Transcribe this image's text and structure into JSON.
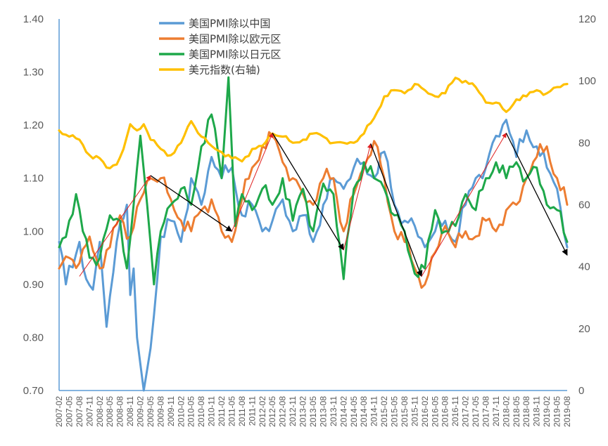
{
  "chart_data": {
    "type": "line",
    "title": "",
    "xlabel": "",
    "ylabel": "",
    "ylim": [
      0.7,
      1.4
    ],
    "y_ticks": [
      "0.70",
      "0.80",
      "0.90",
      "1.00",
      "1.10",
      "1.20",
      "1.30",
      "1.40"
    ],
    "y2lim": [
      0,
      120
    ],
    "y2_ticks": [
      "0",
      "20",
      "40",
      "60",
      "80",
      "100",
      "120"
    ],
    "x_start": "2007-02",
    "x_tick_labels": [
      "2007-02",
      "2007-05",
      "2007-08",
      "2007-11",
      "2008-02",
      "2008-05",
      "2008-08",
      "2008-11",
      "2009-02",
      "2009-05",
      "2009-08",
      "2009-11",
      "2010-02",
      "2010-05",
      "2010-08",
      "2010-11",
      "2011-02",
      "2011-05",
      "2011-08",
      "2011-11",
      "2012-02",
      "2012-05",
      "2012-08",
      "2012-11",
      "2013-02",
      "2013-05",
      "2013-08",
      "2013-11",
      "2014-02",
      "2014-05",
      "2014-08",
      "2014-11",
      "2015-02",
      "2015-05",
      "2015-08",
      "2015-11",
      "2016-02",
      "2016-05",
      "2016-08",
      "2016-11",
      "2017-02",
      "2017-05",
      "2017-08",
      "2017-11",
      "2018-02",
      "2018-05",
      "2018-08",
      "2018-11",
      "2019-02",
      "2019-05",
      "2019-08"
    ],
    "legend_placement": "top-center",
    "grid": false,
    "series": [
      {
        "name": "美国PMI除以中国",
        "color": "#5B9BD5",
        "axis": "left",
        "keypoints": [
          [
            "2007-02",
            0.98
          ],
          [
            "2007-04",
            0.9
          ],
          [
            "2007-08",
            0.98
          ],
          [
            "2007-10",
            0.91
          ],
          [
            "2007-12",
            0.89
          ],
          [
            "2008-02",
            0.98
          ],
          [
            "2008-04",
            0.82
          ],
          [
            "2008-07",
            0.98
          ],
          [
            "2008-10",
            1.05
          ],
          [
            "2008-11",
            0.88
          ],
          [
            "2008-12",
            0.93
          ],
          [
            "2009-01",
            0.8
          ],
          [
            "2009-03",
            0.7
          ],
          [
            "2009-05",
            0.78
          ],
          [
            "2009-08",
            0.99
          ],
          [
            "2009-11",
            1.02
          ],
          [
            "2010-02",
            0.98
          ],
          [
            "2010-05",
            1.1
          ],
          [
            "2010-08",
            1.05
          ],
          [
            "2010-11",
            1.14
          ],
          [
            "2011-02",
            1.1
          ],
          [
            "2011-05",
            1.12
          ],
          [
            "2011-08",
            1.03
          ],
          [
            "2011-11",
            1.05
          ],
          [
            "2012-02",
            1.0
          ],
          [
            "2012-05",
            1.02
          ],
          [
            "2012-08",
            1.06
          ],
          [
            "2012-11",
            1.0
          ],
          [
            "2013-02",
            1.03
          ],
          [
            "2013-05",
            0.98
          ],
          [
            "2013-08",
            1.05
          ],
          [
            "2013-11",
            1.1
          ],
          [
            "2014-02",
            1.08
          ],
          [
            "2014-05",
            1.12
          ],
          [
            "2014-08",
            1.13
          ],
          [
            "2014-11",
            1.1
          ],
          [
            "2015-02",
            1.15
          ],
          [
            "2015-05",
            1.05
          ],
          [
            "2015-08",
            1.02
          ],
          [
            "2015-11",
            1.01
          ],
          [
            "2016-02",
            0.97
          ],
          [
            "2016-05",
            1.0
          ],
          [
            "2016-08",
            1.02
          ],
          [
            "2016-11",
            0.98
          ],
          [
            "2017-02",
            1.05
          ],
          [
            "2017-05",
            1.1
          ],
          [
            "2017-08",
            1.12
          ],
          [
            "2017-11",
            1.18
          ],
          [
            "2018-02",
            1.21
          ],
          [
            "2018-05",
            1.14
          ],
          [
            "2018-08",
            1.19
          ],
          [
            "2018-11",
            1.16
          ],
          [
            "2019-02",
            1.12
          ],
          [
            "2019-05",
            1.08
          ],
          [
            "2019-08",
            0.97
          ]
        ]
      },
      {
        "name": "美国PMI除以欧元区",
        "color": "#ED7D31",
        "axis": "left",
        "keypoints": [
          [
            "2007-02",
            0.93
          ],
          [
            "2007-05",
            0.95
          ],
          [
            "2007-08",
            0.94
          ],
          [
            "2007-11",
            0.99
          ],
          [
            "2008-02",
            0.93
          ],
          [
            "2008-05",
            0.97
          ],
          [
            "2008-08",
            1.03
          ],
          [
            "2008-11",
            0.99
          ],
          [
            "2009-02",
            1.06
          ],
          [
            "2009-05",
            1.1
          ],
          [
            "2009-08",
            1.1
          ],
          [
            "2009-11",
            1.06
          ],
          [
            "2010-02",
            1.02
          ],
          [
            "2010-05",
            1.0
          ],
          [
            "2010-08",
            1.04
          ],
          [
            "2010-11",
            1.06
          ],
          [
            "2011-02",
            1.0
          ],
          [
            "2011-05",
            0.98
          ],
          [
            "2011-08",
            1.06
          ],
          [
            "2011-11",
            1.12
          ],
          [
            "2012-02",
            1.16
          ],
          [
            "2012-05",
            1.18
          ],
          [
            "2012-08",
            1.13
          ],
          [
            "2012-11",
            1.1
          ],
          [
            "2013-02",
            1.07
          ],
          [
            "2013-05",
            1.05
          ],
          [
            "2013-08",
            1.1
          ],
          [
            "2013-11",
            1.1
          ],
          [
            "2014-02",
            1.0
          ],
          [
            "2014-05",
            1.07
          ],
          [
            "2014-08",
            1.12
          ],
          [
            "2014-11",
            1.17
          ],
          [
            "2015-02",
            1.1
          ],
          [
            "2015-05",
            1.0
          ],
          [
            "2015-08",
            0.98
          ],
          [
            "2015-11",
            0.93
          ],
          [
            "2016-02",
            0.9
          ],
          [
            "2016-05",
            0.96
          ],
          [
            "2016-08",
            1.01
          ],
          [
            "2016-11",
            0.97
          ],
          [
            "2017-02",
            1.0
          ],
          [
            "2017-05",
            0.99
          ],
          [
            "2017-08",
            1.02
          ],
          [
            "2017-11",
            1.0
          ],
          [
            "2018-02",
            1.04
          ],
          [
            "2018-05",
            1.05
          ],
          [
            "2018-08",
            1.1
          ],
          [
            "2018-11",
            1.14
          ],
          [
            "2019-02",
            1.16
          ],
          [
            "2019-05",
            1.1
          ],
          [
            "2019-08",
            1.05
          ]
        ]
      },
      {
        "name": "美国PMI除以日元区",
        "color": "#1EA84A",
        "axis": "left",
        "keypoints": [
          [
            "2007-02",
            0.97
          ],
          [
            "2007-05",
            1.02
          ],
          [
            "2007-07",
            1.07
          ],
          [
            "2007-09",
            1.0
          ],
          [
            "2007-11",
            0.95
          ],
          [
            "2008-02",
            0.95
          ],
          [
            "2008-05",
            1.03
          ],
          [
            "2008-08",
            1.02
          ],
          [
            "2008-10",
            0.93
          ],
          [
            "2008-12",
            1.05
          ],
          [
            "2009-02",
            1.18
          ],
          [
            "2009-04",
            1.05
          ],
          [
            "2009-06",
            0.9
          ],
          [
            "2009-08",
            1.0
          ],
          [
            "2009-11",
            1.05
          ],
          [
            "2010-02",
            1.08
          ],
          [
            "2010-05",
            1.05
          ],
          [
            "2010-08",
            1.16
          ],
          [
            "2010-11",
            1.22
          ],
          [
            "2011-02",
            1.1
          ],
          [
            "2011-04",
            1.29
          ],
          [
            "2011-06",
            1.01
          ],
          [
            "2011-08",
            1.07
          ],
          [
            "2011-11",
            1.04
          ],
          [
            "2012-02",
            1.08
          ],
          [
            "2012-05",
            1.05
          ],
          [
            "2012-08",
            1.1
          ],
          [
            "2012-11",
            1.02
          ],
          [
            "2013-02",
            1.08
          ],
          [
            "2013-05",
            1.0
          ],
          [
            "2013-08",
            1.09
          ],
          [
            "2013-11",
            1.07
          ],
          [
            "2014-02",
            0.91
          ],
          [
            "2014-05",
            1.08
          ],
          [
            "2014-08",
            1.13
          ],
          [
            "2014-11",
            1.1
          ],
          [
            "2015-02",
            1.08
          ],
          [
            "2015-05",
            1.03
          ],
          [
            "2015-08",
            1.0
          ],
          [
            "2015-11",
            0.92
          ],
          [
            "2016-02",
            0.93
          ],
          [
            "2016-05",
            1.04
          ],
          [
            "2016-08",
            1.0
          ],
          [
            "2016-11",
            1.01
          ],
          [
            "2017-02",
            1.07
          ],
          [
            "2017-05",
            1.04
          ],
          [
            "2017-08",
            1.1
          ],
          [
            "2017-11",
            1.13
          ],
          [
            "2018-02",
            1.1
          ],
          [
            "2018-05",
            1.13
          ],
          [
            "2018-08",
            1.1
          ],
          [
            "2018-11",
            1.12
          ],
          [
            "2019-02",
            1.05
          ],
          [
            "2019-05",
            1.04
          ],
          [
            "2019-08",
            0.98
          ]
        ]
      },
      {
        "name": "美元指数(右轴)",
        "color": "#FFC000",
        "axis": "right",
        "keypoints": [
          [
            "2007-02",
            84
          ],
          [
            "2007-05",
            82
          ],
          [
            "2007-08",
            81
          ],
          [
            "2007-11",
            76
          ],
          [
            "2008-02",
            75
          ],
          [
            "2008-04",
            72
          ],
          [
            "2008-07",
            73
          ],
          [
            "2008-09",
            78
          ],
          [
            "2008-11",
            86
          ],
          [
            "2009-01",
            84
          ],
          [
            "2009-03",
            86
          ],
          [
            "2009-05",
            81
          ],
          [
            "2009-08",
            78
          ],
          [
            "2009-11",
            76
          ],
          [
            "2010-02",
            80
          ],
          [
            "2010-05",
            87
          ],
          [
            "2010-08",
            82
          ],
          [
            "2010-11",
            79
          ],
          [
            "2011-02",
            77
          ],
          [
            "2011-05",
            75
          ],
          [
            "2011-08",
            74
          ],
          [
            "2011-11",
            78
          ],
          [
            "2012-02",
            79
          ],
          [
            "2012-05",
            83
          ],
          [
            "2012-08",
            82
          ],
          [
            "2012-11",
            80
          ],
          [
            "2013-02",
            81
          ],
          [
            "2013-05",
            83
          ],
          [
            "2013-08",
            82
          ],
          [
            "2013-11",
            80
          ],
          [
            "2014-02",
            80
          ],
          [
            "2014-05",
            80
          ],
          [
            "2014-08",
            83
          ],
          [
            "2014-11",
            88
          ],
          [
            "2015-02",
            95
          ],
          [
            "2015-05",
            97
          ],
          [
            "2015-08",
            96
          ],
          [
            "2015-11",
            99
          ],
          [
            "2016-02",
            97
          ],
          [
            "2016-05",
            95
          ],
          [
            "2016-08",
            96
          ],
          [
            "2016-11",
            101
          ],
          [
            "2017-02",
            100
          ],
          [
            "2017-05",
            98
          ],
          [
            "2017-08",
            93
          ],
          [
            "2017-11",
            93
          ],
          [
            "2018-02",
            90
          ],
          [
            "2018-05",
            94
          ],
          [
            "2018-08",
            95
          ],
          [
            "2018-11",
            97
          ],
          [
            "2019-02",
            96
          ],
          [
            "2019-05",
            98
          ],
          [
            "2019-08",
            99
          ]
        ]
      }
    ],
    "arrows": [
      {
        "color": "#E02020",
        "from": [
          "2007-08",
          0.915
        ],
        "to": [
          "2009-05",
          1.105
        ]
      },
      {
        "color": "#000000",
        "from": [
          "2009-05",
          1.105
        ],
        "to": [
          "2011-05",
          1.0
        ]
      },
      {
        "color": "#E02020",
        "from": [
          "2011-05",
          1.0
        ],
        "to": [
          "2012-05",
          1.185
        ]
      },
      {
        "color": "#000000",
        "from": [
          "2012-05",
          1.185
        ],
        "to": [
          "2014-02",
          0.965
        ]
      },
      {
        "color": "#E02020",
        "from": [
          "2014-02",
          0.965
        ],
        "to": [
          "2014-10",
          1.165
        ]
      },
      {
        "color": "#000000",
        "from": [
          "2014-10",
          1.165
        ],
        "to": [
          "2016-01",
          0.915
        ]
      },
      {
        "color": "#E02020",
        "from": [
          "2016-01",
          0.915
        ],
        "to": [
          "2018-02",
          1.185
        ]
      },
      {
        "color": "#000000",
        "from": [
          "2018-02",
          1.185
        ],
        "to": [
          "2019-08",
          0.955
        ]
      }
    ]
  }
}
